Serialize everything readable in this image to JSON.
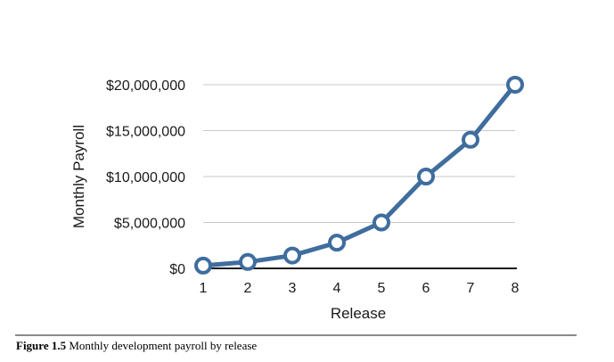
{
  "chart_data": {
    "type": "line",
    "title": "",
    "xlabel": "Release",
    "ylabel": "Monthly Payroll",
    "categories": [
      "1",
      "2",
      "3",
      "4",
      "5",
      "6",
      "7",
      "8"
    ],
    "series": [
      {
        "values": [
          300000,
          700000,
          1400000,
          2800000,
          5000000,
          10000000,
          14000000,
          20000000
        ]
      }
    ],
    "ylim": [
      0,
      20000000
    ],
    "yticks": [
      0,
      5000000,
      10000000,
      15000000,
      20000000
    ],
    "ytick_labels": [
      "$0",
      "$5,000,000",
      "$10,000,000",
      "$15,000,000",
      "$20,000,000"
    ],
    "grid": "horizontal",
    "legend": "none",
    "colors": {
      "line": "#3f6d9e",
      "marker_fill": "#ffffff",
      "grid": "#c8c8c8",
      "axis": "#1a1a1a"
    }
  },
  "caption": {
    "label": "Figure 1.5",
    "text": "Monthly development payroll by release"
  }
}
